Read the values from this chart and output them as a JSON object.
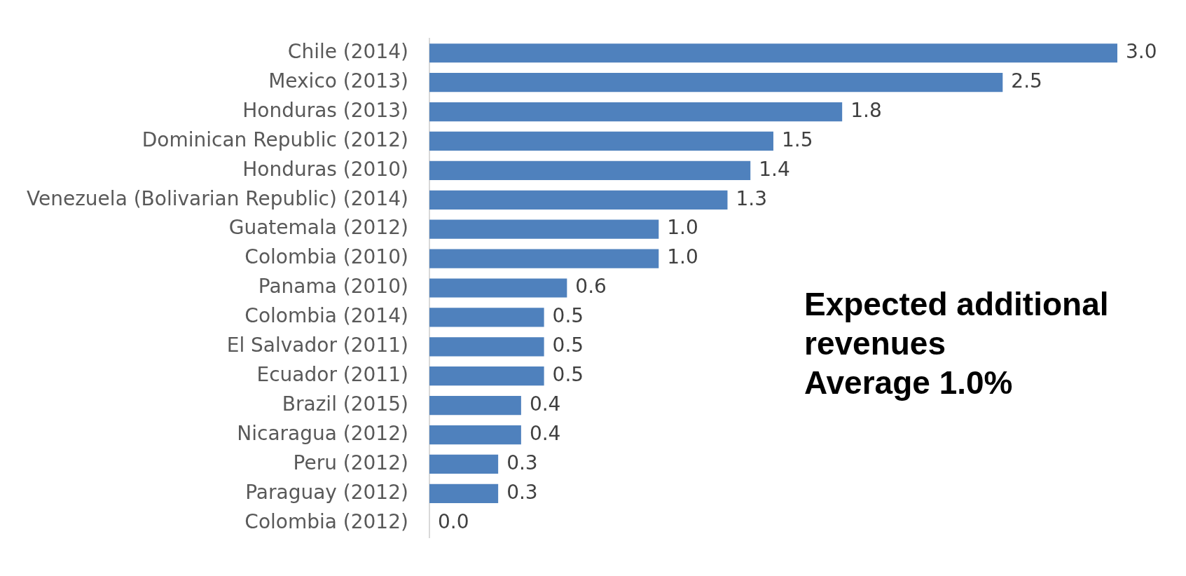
{
  "chart_data": {
    "type": "bar",
    "orientation": "horizontal",
    "categories": [
      "Chile (2014)",
      "Mexico (2013)",
      "Honduras (2013)",
      "Dominican Republic (2012)",
      "Honduras (2010)",
      "Venezuela (Bolivarian Republic) (2014)",
      "Guatemala (2012)",
      "Colombia (2010)",
      "Panama (2010)",
      "Colombia (2014)",
      "El Salvador (2011)",
      "Ecuador (2011)",
      "Brazil (2015)",
      "Nicaragua (2012)",
      "Peru (2012)",
      "Paraguay (2012)",
      "Colombia (2012)"
    ],
    "values": [
      3.0,
      2.5,
      1.8,
      1.5,
      1.4,
      1.3,
      1.0,
      1.0,
      0.6,
      0.5,
      0.5,
      0.5,
      0.4,
      0.4,
      0.3,
      0.3,
      0.0
    ],
    "value_labels": [
      "3.0",
      "2.5",
      "1.8",
      "1.5",
      "1.4",
      "1.3",
      "1.0",
      "1.0",
      "0.6",
      "0.5",
      "0.5",
      "0.5",
      "0.4",
      "0.4",
      "0.3",
      "0.3",
      "0.0"
    ],
    "color": "#4f81bd",
    "xlim": [
      0,
      3
    ],
    "tick_labels": "y",
    "grid": false,
    "legend": false,
    "annotations": [
      "Expected additional",
      "revenues",
      "Average 1.0%"
    ]
  }
}
